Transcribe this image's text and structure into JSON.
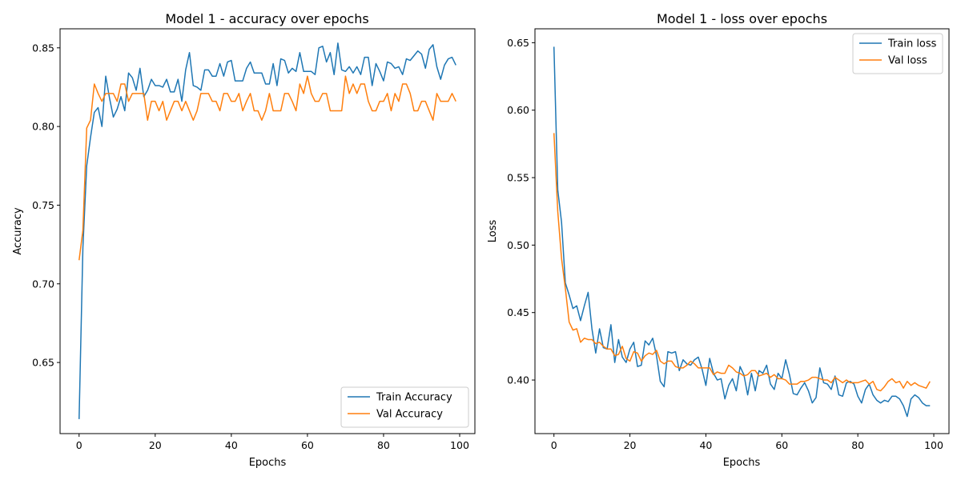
{
  "figure": {
    "background": "#ffffff"
  },
  "chart_data": [
    {
      "type": "line",
      "title": "Model 1 - accuracy over epochs",
      "xlabel": "Epochs",
      "ylabel": "Accuracy",
      "xlim": [
        -5,
        104
      ],
      "ylim": [
        0.6048,
        0.8621
      ],
      "xticks": [
        0,
        20,
        40,
        60,
        80,
        100
      ],
      "xtick_labels": [
        "0",
        "20",
        "40",
        "60",
        "80",
        "100"
      ],
      "yticks": [
        0.65,
        0.7,
        0.75,
        0.8,
        0.85
      ],
      "ytick_labels": [
        "0.65",
        "0.70",
        "0.75",
        "0.80",
        "0.85"
      ],
      "grid": false,
      "legend_position": "lower-right",
      "x": [
        0,
        1,
        2,
        3,
        4,
        5,
        6,
        7,
        8,
        9,
        10,
        11,
        12,
        13,
        14,
        15,
        16,
        17,
        18,
        19,
        20,
        21,
        22,
        23,
        24,
        25,
        26,
        27,
        28,
        29,
        30,
        31,
        32,
        33,
        34,
        35,
        36,
        37,
        38,
        39,
        40,
        41,
        42,
        43,
        44,
        45,
        46,
        47,
        48,
        49,
        50,
        51,
        52,
        53,
        54,
        55,
        56,
        57,
        58,
        59,
        60,
        61,
        62,
        63,
        64,
        65,
        66,
        67,
        68,
        69,
        70,
        71,
        72,
        73,
        74,
        75,
        76,
        77,
        78,
        79,
        80,
        81,
        82,
        83,
        84,
        85,
        86,
        87,
        88,
        89,
        90,
        91,
        92,
        93,
        94,
        95,
        96,
        97,
        98,
        99
      ],
      "series": [
        {
          "name": "Train Accuracy",
          "color": "#1f77b4",
          "values": [
            0.614,
            0.723,
            0.775,
            0.793,
            0.809,
            0.812,
            0.8,
            0.832,
            0.818,
            0.806,
            0.811,
            0.819,
            0.81,
            0.834,
            0.831,
            0.823,
            0.837,
            0.819,
            0.823,
            0.83,
            0.826,
            0.826,
            0.825,
            0.83,
            0.822,
            0.822,
            0.83,
            0.816,
            0.836,
            0.847,
            0.826,
            0.825,
            0.823,
            0.836,
            0.836,
            0.832,
            0.832,
            0.84,
            0.832,
            0.841,
            0.842,
            0.829,
            0.829,
            0.829,
            0.837,
            0.841,
            0.834,
            0.834,
            0.834,
            0.827,
            0.827,
            0.84,
            0.826,
            0.843,
            0.842,
            0.834,
            0.837,
            0.835,
            0.847,
            0.835,
            0.835,
            0.835,
            0.833,
            0.85,
            0.851,
            0.841,
            0.847,
            0.833,
            0.853,
            0.836,
            0.835,
            0.838,
            0.834,
            0.838,
            0.833,
            0.844,
            0.844,
            0.826,
            0.84,
            0.835,
            0.829,
            0.841,
            0.84,
            0.837,
            0.838,
            0.833,
            0.843,
            0.842,
            0.845,
            0.848,
            0.846,
            0.837,
            0.849,
            0.852,
            0.838,
            0.83,
            0.839,
            0.843,
            0.844,
            0.839
          ]
        },
        {
          "name": "Val Accuracy",
          "color": "#ff7f0e",
          "values": [
            0.715,
            0.734,
            0.799,
            0.804,
            0.827,
            0.821,
            0.816,
            0.821,
            0.821,
            0.821,
            0.816,
            0.827,
            0.827,
            0.816,
            0.821,
            0.821,
            0.821,
            0.821,
            0.804,
            0.816,
            0.816,
            0.81,
            0.816,
            0.804,
            0.81,
            0.816,
            0.816,
            0.81,
            0.816,
            0.81,
            0.804,
            0.81,
            0.821,
            0.821,
            0.821,
            0.816,
            0.816,
            0.81,
            0.821,
            0.821,
            0.816,
            0.816,
            0.821,
            0.81,
            0.816,
            0.821,
            0.81,
            0.81,
            0.804,
            0.81,
            0.821,
            0.81,
            0.81,
            0.81,
            0.821,
            0.821,
            0.816,
            0.81,
            0.827,
            0.821,
            0.832,
            0.821,
            0.816,
            0.816,
            0.821,
            0.821,
            0.81,
            0.81,
            0.81,
            0.81,
            0.832,
            0.821,
            0.827,
            0.821,
            0.827,
            0.827,
            0.816,
            0.81,
            0.81,
            0.816,
            0.816,
            0.821,
            0.81,
            0.821,
            0.816,
            0.827,
            0.827,
            0.821,
            0.81,
            0.81,
            0.816,
            0.816,
            0.81,
            0.804,
            0.821,
            0.816,
            0.816,
            0.816,
            0.821,
            0.816
          ]
        }
      ]
    },
    {
      "type": "line",
      "title": "Model 1 - loss over epochs",
      "xlabel": "Epochs",
      "ylabel": "Loss",
      "xlim": [
        -5,
        104
      ],
      "ylim": [
        0.3603,
        0.6603
      ],
      "xticks": [
        0,
        20,
        40,
        60,
        80,
        100
      ],
      "xtick_labels": [
        "0",
        "20",
        "40",
        "60",
        "80",
        "100"
      ],
      "yticks": [
        0.4,
        0.45,
        0.5,
        0.55,
        0.6,
        0.65
      ],
      "ytick_labels": [
        "0.40",
        "0.45",
        "0.50",
        "0.55",
        "0.60",
        "0.65"
      ],
      "grid": false,
      "legend_position": "upper-right",
      "x": [
        0,
        1,
        2,
        3,
        4,
        5,
        6,
        7,
        8,
        9,
        10,
        11,
        12,
        13,
        14,
        15,
        16,
        17,
        18,
        19,
        20,
        21,
        22,
        23,
        24,
        25,
        26,
        27,
        28,
        29,
        30,
        31,
        32,
        33,
        34,
        35,
        36,
        37,
        38,
        39,
        40,
        41,
        42,
        43,
        44,
        45,
        46,
        47,
        48,
        49,
        50,
        51,
        52,
        53,
        54,
        55,
        56,
        57,
        58,
        59,
        60,
        61,
        62,
        63,
        64,
        65,
        66,
        67,
        68,
        69,
        70,
        71,
        72,
        73,
        74,
        75,
        76,
        77,
        78,
        79,
        80,
        81,
        82,
        83,
        84,
        85,
        86,
        87,
        88,
        89,
        90,
        91,
        92,
        93,
        94,
        95,
        96,
        97,
        98,
        99
      ],
      "series": [
        {
          "name": "Train loss",
          "color": "#1f77b4",
          "values": [
            0.647,
            0.541,
            0.517,
            0.472,
            0.463,
            0.453,
            0.455,
            0.444,
            0.455,
            0.465,
            0.438,
            0.42,
            0.438,
            0.424,
            0.423,
            0.441,
            0.413,
            0.43,
            0.417,
            0.413,
            0.423,
            0.428,
            0.41,
            0.411,
            0.429,
            0.426,
            0.431,
            0.418,
            0.399,
            0.395,
            0.421,
            0.42,
            0.421,
            0.407,
            0.415,
            0.412,
            0.411,
            0.415,
            0.417,
            0.408,
            0.396,
            0.416,
            0.405,
            0.4,
            0.401,
            0.386,
            0.396,
            0.401,
            0.392,
            0.41,
            0.404,
            0.389,
            0.405,
            0.392,
            0.407,
            0.405,
            0.411,
            0.397,
            0.393,
            0.405,
            0.401,
            0.415,
            0.404,
            0.39,
            0.389,
            0.394,
            0.398,
            0.392,
            0.383,
            0.387,
            0.409,
            0.398,
            0.397,
            0.393,
            0.403,
            0.389,
            0.388,
            0.398,
            0.399,
            0.397,
            0.388,
            0.383,
            0.393,
            0.397,
            0.389,
            0.385,
            0.383,
            0.385,
            0.384,
            0.388,
            0.388,
            0.386,
            0.381,
            0.373,
            0.386,
            0.389,
            0.387,
            0.383,
            0.381,
            0.381
          ]
        },
        {
          "name": "Val loss",
          "color": "#ff7f0e",
          "values": [
            0.583,
            0.525,
            0.49,
            0.468,
            0.443,
            0.437,
            0.438,
            0.428,
            0.431,
            0.43,
            0.43,
            0.427,
            0.428,
            0.425,
            0.423,
            0.423,
            0.418,
            0.419,
            0.425,
            0.416,
            0.414,
            0.421,
            0.42,
            0.414,
            0.418,
            0.42,
            0.419,
            0.422,
            0.414,
            0.412,
            0.414,
            0.414,
            0.41,
            0.409,
            0.409,
            0.411,
            0.414,
            0.412,
            0.409,
            0.409,
            0.409,
            0.409,
            0.404,
            0.406,
            0.405,
            0.405,
            0.411,
            0.409,
            0.406,
            0.405,
            0.403,
            0.404,
            0.407,
            0.407,
            0.403,
            0.404,
            0.405,
            0.402,
            0.404,
            0.401,
            0.401,
            0.4,
            0.397,
            0.397,
            0.397,
            0.399,
            0.399,
            0.4,
            0.402,
            0.402,
            0.401,
            0.4,
            0.4,
            0.398,
            0.402,
            0.4,
            0.398,
            0.4,
            0.398,
            0.398,
            0.398,
            0.399,
            0.4,
            0.397,
            0.399,
            0.393,
            0.392,
            0.395,
            0.399,
            0.401,
            0.398,
            0.399,
            0.394,
            0.399,
            0.396,
            0.398,
            0.396,
            0.395,
            0.394,
            0.399
          ]
        }
      ]
    }
  ]
}
